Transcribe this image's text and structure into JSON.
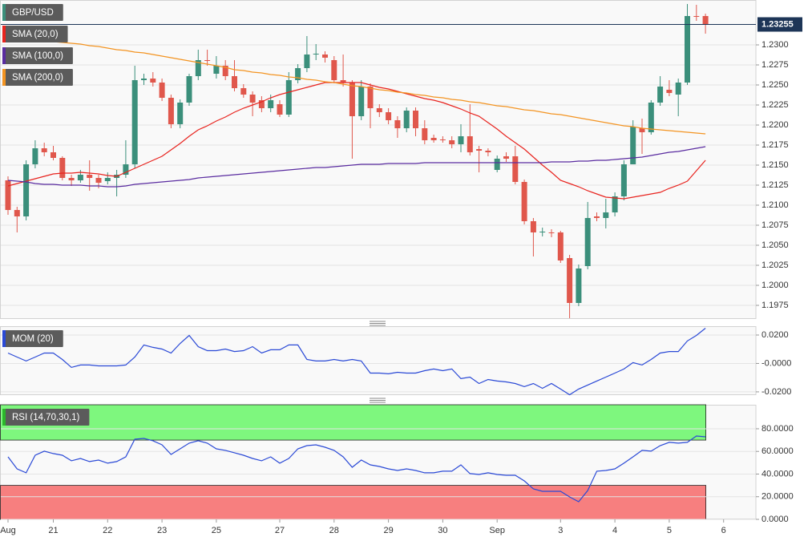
{
  "chart_data": [
    {
      "type": "candlestick",
      "title": "GBP/USD",
      "categories": [
        "Aug",
        null,
        null,
        null,
        null,
        "21",
        null,
        null,
        null,
        null,
        null,
        "22",
        null,
        null,
        null,
        null,
        null,
        "23",
        null,
        null,
        null,
        null,
        null,
        "25",
        null,
        null,
        null,
        null,
        null,
        null,
        "27",
        null,
        null,
        null,
        null,
        null,
        "28",
        null,
        null,
        null,
        null,
        null,
        "29",
        null,
        null,
        null,
        null,
        null,
        "30",
        null,
        null,
        null,
        null,
        null,
        "Sep",
        null,
        null,
        null,
        null,
        null,
        null,
        "3",
        null,
        null,
        null,
        null,
        null,
        "4",
        null,
        null,
        null,
        null,
        null,
        "5",
        null,
        null,
        null,
        null,
        null,
        "6"
      ],
      "open": [
        1.2131,
        1.2094,
        1.2086,
        1.2151,
        1.2171,
        1.2166,
        1.2159,
        1.2134,
        1.2131,
        1.2138,
        1.2134,
        1.213,
        1.2134,
        1.2138,
        1.2151,
        1.2256,
        1.2258,
        1.2253,
        1.2234,
        1.2201,
        1.2228,
        1.2261,
        1.2281,
        1.2264,
        1.2274,
        1.2261,
        1.2246,
        1.2238,
        1.2231,
        1.2221,
        1.2226,
        1.2213,
        1.2256,
        1.2271,
        1.2288,
        1.2288,
        1.2281,
        1.2256,
        1.2253,
        1.2211,
        1.2248,
        1.2221,
        1.2216,
        1.2206,
        1.2196,
        1.2218,
        1.2196,
        1.2184,
        1.2182,
        1.2181,
        1.2176,
        1.2186,
        1.217,
        1.2168,
        1.2144,
        1.2161,
        1.2161,
        1.2129,
        1.208,
        1.2066,
        1.2066,
        1.2066,
        1.2034,
        1.1978,
        1.2024,
        1.2086,
        1.2084,
        1.2091,
        1.2111,
        1.2151,
        1.2196,
        1.2191,
        1.2228,
        1.2244,
        1.2238,
        1.2253,
        1.2336,
        1.2336,
        null,
        null
      ],
      "high": [
        1.2136,
        1.2098,
        1.2156,
        1.2181,
        1.2178,
        1.2174,
        1.2161,
        1.2138,
        1.2144,
        1.2156,
        1.2138,
        1.2141,
        1.2144,
        1.2181,
        1.2274,
        1.2264,
        1.2266,
        1.2258,
        1.2238,
        1.2232,
        1.2264,
        1.2294,
        1.2294,
        1.2286,
        1.2281,
        1.2281,
        1.2251,
        1.2242,
        1.2236,
        1.2238,
        1.2231,
        1.2266,
        1.2276,
        1.2311,
        1.2301,
        1.2292,
        1.2286,
        1.2288,
        1.2256,
        1.2256,
        1.2252,
        1.2226,
        1.2221,
        1.2211,
        1.2222,
        1.2222,
        1.2206,
        1.2188,
        1.2186,
        1.2186,
        1.2201,
        1.2226,
        1.2174,
        1.2171,
        1.2162,
        1.2166,
        1.2174,
        1.2132,
        1.2084,
        1.2072,
        1.207,
        1.2068,
        1.2038,
        1.2026,
        1.2104,
        1.2091,
        1.2108,
        1.2116,
        1.2156,
        1.2206,
        1.2208,
        1.2231,
        1.2261,
        1.2256,
        1.2258,
        1.2351,
        1.235,
        1.2339,
        null,
        null
      ],
      "low": [
        1.2088,
        1.2066,
        1.2081,
        1.2146,
        1.2161,
        1.2156,
        1.2131,
        1.2124,
        1.2128,
        1.2118,
        1.2121,
        1.2126,
        1.2111,
        1.2134,
        1.2146,
        1.225,
        1.2248,
        1.223,
        1.2196,
        1.2196,
        1.2224,
        1.2256,
        1.2274,
        1.2258,
        1.2256,
        1.2242,
        1.2234,
        1.2211,
        1.2216,
        1.2216,
        1.221,
        1.221,
        1.2252,
        1.2266,
        1.2281,
        1.2278,
        1.2252,
        1.2248,
        1.2158,
        1.2206,
        1.2196,
        1.221,
        1.2201,
        1.2184,
        1.2191,
        1.2186,
        1.2176,
        1.2178,
        1.2178,
        1.2171,
        1.2166,
        1.2162,
        1.2141,
        1.2161,
        1.2141,
        1.2154,
        1.2126,
        1.2076,
        1.2036,
        1.2061,
        1.206,
        1.2028,
        1.1959,
        1.1974,
        1.202,
        1.208,
        1.2071,
        1.2086,
        1.2106,
        1.2151,
        1.2164,
        1.2188,
        1.2224,
        1.2236,
        1.2211,
        1.225,
        1.233,
        1.2314,
        null,
        null
      ],
      "close": [
        1.2094,
        1.2086,
        1.2151,
        1.2171,
        1.2166,
        1.2159,
        1.2134,
        1.2131,
        1.2138,
        1.2134,
        1.2128,
        1.2134,
        1.2138,
        1.2151,
        1.2256,
        1.2258,
        1.2253,
        1.2234,
        1.2201,
        1.2228,
        1.2261,
        1.2281,
        1.228,
        1.2274,
        1.2261,
        1.2246,
        1.2238,
        1.2228,
        1.2221,
        1.2231,
        1.2213,
        1.2256,
        1.2271,
        1.2288,
        1.2289,
        1.2284,
        1.2256,
        1.2253,
        1.2211,
        1.2248,
        1.2221,
        1.2216,
        1.2206,
        1.2196,
        1.2218,
        1.2196,
        1.2181,
        1.2181,
        1.2181,
        1.2176,
        1.2186,
        1.2166,
        1.2168,
        1.2166,
        1.2158,
        1.2158,
        1.2129,
        1.208,
        1.2066,
        1.2067,
        1.2065,
        1.2031,
        1.1978,
        1.2021,
        1.2084,
        1.2084,
        1.2091,
        1.2111,
        1.2151,
        1.2198,
        1.2191,
        1.2228,
        1.2248,
        1.224,
        1.2253,
        1.2336,
        1.2335,
        1.2326,
        null,
        null
      ],
      "up_color": "#3b8f7b",
      "down_color": "#e0574c",
      "series": [
        {
          "name": "SMA (20,0)",
          "color": "#e8231e",
          "values": [
            1.2124,
            1.2127,
            1.213,
            1.2133,
            1.2136,
            1.2139,
            1.214,
            1.214,
            1.2141,
            1.214,
            1.2139,
            1.2137,
            1.2136,
            1.2141,
            1.2146,
            1.2151,
            1.2156,
            1.2161,
            1.2169,
            1.2177,
            1.2186,
            1.2194,
            1.2199,
            1.2205,
            1.221,
            1.2216,
            1.2221,
            1.2225,
            1.2229,
            1.2234,
            1.2238,
            1.2241,
            1.2244,
            1.2247,
            1.225,
            1.2253,
            1.2253,
            1.2253,
            1.2253,
            1.2253,
            1.225,
            1.2247,
            1.2245,
            1.2242,
            1.2239,
            1.2236,
            1.2233,
            1.2231,
            1.2228,
            1.2224,
            1.222,
            1.2215,
            1.2211,
            1.2203,
            1.2195,
            1.2186,
            1.2178,
            1.217,
            1.216,
            1.215,
            1.2141,
            1.2131,
            1.2127,
            1.2123,
            1.2118,
            1.2114,
            1.211,
            1.2109,
            1.2108,
            1.211,
            1.2112,
            1.2114,
            1.2116,
            1.2121,
            1.2125,
            1.213,
            1.2143,
            1.2156,
            null,
            null
          ]
        },
        {
          "name": "SMA (100,0)",
          "color": "#5a2ca0",
          "values": [
            1.2131,
            1.213,
            1.2129,
            1.2127,
            1.2126,
            1.2126,
            1.2125,
            1.2125,
            1.2125,
            1.2124,
            1.2124,
            1.2123,
            1.2123,
            1.2124,
            1.2126,
            1.2127,
            1.2128,
            1.2129,
            1.213,
            1.2131,
            1.2132,
            1.2134,
            1.2135,
            1.2136,
            1.2137,
            1.2138,
            1.2139,
            1.214,
            1.2141,
            1.2142,
            1.2143,
            1.2144,
            1.2145,
            1.2146,
            1.2147,
            1.2147,
            1.2148,
            1.2149,
            1.215,
            1.2151,
            1.2151,
            1.2151,
            1.2152,
            1.2152,
            1.2152,
            1.2152,
            1.2153,
            1.2153,
            1.2153,
            1.2153,
            1.2153,
            1.2153,
            1.2153,
            1.2153,
            1.2153,
            1.2153,
            1.2153,
            1.2153,
            1.2153,
            1.2153,
            1.2154,
            1.2154,
            1.2154,
            1.2155,
            1.2155,
            1.2156,
            1.2156,
            1.2157,
            1.2158,
            1.2159,
            1.216,
            1.2162,
            1.2164,
            1.2166,
            1.2167,
            1.2169,
            1.2171,
            1.2173,
            null,
            null
          ]
        },
        {
          "name": "SMA (200,0)",
          "color": "#f39422",
          "values": [
            1.2309,
            1.2308,
            1.2307,
            1.2306,
            1.2305,
            1.2304,
            1.2303,
            1.2302,
            1.2301,
            1.2299,
            1.2298,
            1.2296,
            1.2294,
            1.2293,
            1.2291,
            1.229,
            1.2288,
            1.2286,
            1.2284,
            1.2282,
            1.228,
            1.2278,
            1.2276,
            1.2274,
            1.2272,
            1.2269,
            1.2268,
            1.2266,
            1.2265,
            1.2263,
            1.2262,
            1.226,
            1.2259,
            1.2257,
            1.2256,
            1.2254,
            1.2253,
            1.2251,
            1.2249,
            1.2248,
            1.2246,
            1.2244,
            1.2243,
            1.2241,
            1.224,
            1.2238,
            1.2237,
            1.2235,
            1.2234,
            1.2232,
            1.2231,
            1.2229,
            1.2228,
            1.2226,
            1.2224,
            1.2223,
            1.2221,
            1.2219,
            1.2218,
            1.2216,
            1.2214,
            1.2213,
            1.2211,
            1.2209,
            1.2207,
            1.2205,
            1.2203,
            1.2201,
            1.2199,
            1.2198,
            1.2196,
            1.2195,
            1.2194,
            1.2193,
            1.2192,
            1.2191,
            1.219,
            1.2189,
            null,
            null
          ]
        }
      ],
      "ylim": [
        1.1958,
        1.2356
      ],
      "yticks": [
        {
          "value": 1.23,
          "label": "1.2300"
        },
        {
          "value": 1.2275,
          "label": "1.2275"
        },
        {
          "value": 1.225,
          "label": "1.2250"
        },
        {
          "value": 1.2225,
          "label": "1.2225"
        },
        {
          "value": 1.22,
          "label": "1.2200"
        },
        {
          "value": 1.2175,
          "label": "1.2175"
        },
        {
          "value": 1.215,
          "label": "1.2150"
        },
        {
          "value": 1.2125,
          "label": "1.2125"
        },
        {
          "value": 1.21,
          "label": "1.2100"
        },
        {
          "value": 1.2075,
          "label": "1.2075"
        },
        {
          "value": 1.205,
          "label": "1.2050"
        },
        {
          "value": 1.2025,
          "label": "1.2025"
        },
        {
          "value": 1.2,
          "label": "1.2000"
        },
        {
          "value": 1.1975,
          "label": "1.1975"
        }
      ],
      "last_price": 1.23255,
      "grid": true
    },
    {
      "type": "line",
      "series": [
        {
          "name": "MOM (20)",
          "color": "#2a49d6",
          "values": [
            0.0073,
            0.0045,
            0.0017,
            0.0045,
            0.0073,
            0.0073,
            0.0028,
            -0.0028,
            -0.0011,
            -0.0011,
            -0.0017,
            -0.0017,
            -0.0017,
            -0.0011,
            0.0045,
            0.013,
            0.0113,
            0.0101,
            0.0073,
            0.0141,
            0.0197,
            0.0118,
            0.009,
            0.009,
            0.0101,
            0.0084,
            0.009,
            0.0118,
            0.0073,
            0.0096,
            0.0096,
            0.013,
            0.013,
            0.0028,
            0.0017,
            0.0017,
            0.0028,
            0.0017,
            0.0028,
            0.0017,
            -0.0068,
            -0.0068,
            -0.0073,
            -0.0062,
            -0.0068,
            -0.0068,
            -0.0051,
            -0.0039,
            -0.0051,
            -0.0039,
            -0.0107,
            -0.0096,
            -0.0141,
            -0.0113,
            -0.0124,
            -0.013,
            -0.0141,
            -0.0163,
            -0.0141,
            -0.0175,
            -0.0141,
            -0.018,
            -0.022,
            -0.018,
            -0.0152,
            -0.0124,
            -0.0096,
            -0.0068,
            -0.0039,
            0.0006,
            -0.0011,
            0.0028,
            0.0073,
            0.0084,
            0.0084,
            0.0158,
            0.0197,
            0.0248,
            null,
            null
          ]
        }
      ],
      "ylim": [
        -0.0223,
        0.0262
      ],
      "yticks": [
        {
          "value": 0.02,
          "label": "0.0200"
        },
        {
          "value": 0,
          "label": "-0.0000"
        },
        {
          "value": -0.02,
          "label": "-0.0200"
        }
      ],
      "grid": true
    },
    {
      "type": "line",
      "series": [
        {
          "name": "RSI (14,70,30,1)",
          "color": "#2a49d6",
          "values": [
            55.2,
            44.6,
            41.1,
            56.6,
            60.2,
            58.1,
            56.6,
            51.7,
            53.8,
            51.0,
            52.4,
            49.6,
            51.0,
            55.2,
            70.8,
            71.5,
            69.4,
            65.8,
            57.3,
            62.3,
            67.3,
            69.4,
            67.3,
            62.3,
            60.9,
            58.8,
            56.6,
            53.8,
            51.7,
            55.2,
            49.6,
            53.8,
            62.3,
            65.1,
            65.8,
            63.7,
            60.9,
            55.2,
            46.0,
            52.4,
            48.1,
            46.7,
            44.6,
            43.2,
            44.6,
            43.2,
            41.1,
            41.1,
            42.5,
            42.5,
            48.1,
            40.4,
            39.6,
            41.1,
            39.6,
            38.9,
            38.9,
            34.0,
            26.9,
            24.8,
            24.8,
            24.8,
            19.8,
            15.6,
            25.5,
            42.5,
            43.2,
            44.6,
            49.6,
            55.2,
            60.9,
            60.2,
            65.1,
            68.0,
            67.3,
            68.0,
            73.6,
            72.9,
            null,
            null
          ]
        }
      ],
      "overbought": 70,
      "oversold": 30,
      "overbought_color": "#7ef77e",
      "oversold_color": "#f77f7f",
      "ylim": [
        0,
        101.2
      ],
      "yticks": [
        {
          "value": 80,
          "label": "80.0000"
        },
        {
          "value": 60,
          "label": "60.0000"
        },
        {
          "value": 40,
          "label": "40.0000"
        },
        {
          "value": 20,
          "label": "20.0000"
        },
        {
          "value": 0,
          "label": "0.0000"
        }
      ],
      "grid": true
    }
  ]
}
